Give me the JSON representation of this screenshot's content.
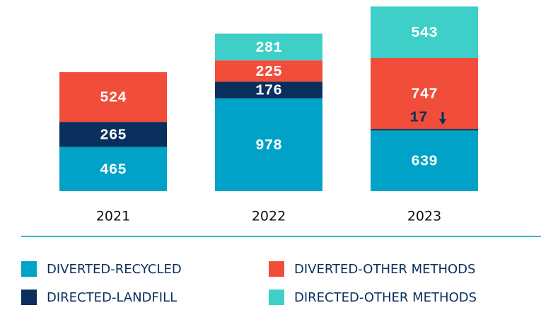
{
  "chart_data": {
    "type": "stacked_bar",
    "categories": [
      "2021",
      "2022",
      "2023"
    ],
    "series": [
      {
        "name": "DIVERTED-RECYCLED",
        "color": "#00a3c7",
        "values": [
          465,
          978,
          639
        ]
      },
      {
        "name": "DIRECTED-LANDFILL",
        "color": "#0a2f5c",
        "values": [
          265,
          176,
          17
        ]
      },
      {
        "name": "DIVERTED-OTHER METHODS",
        "color": "#f04e3a",
        "values": [
          524,
          225,
          747
        ]
      },
      {
        "name": "DIRECTED-OTHER METHODS",
        "color": "#3ecfc8",
        "values": [
          null,
          281,
          543
        ]
      }
    ]
  }
}
